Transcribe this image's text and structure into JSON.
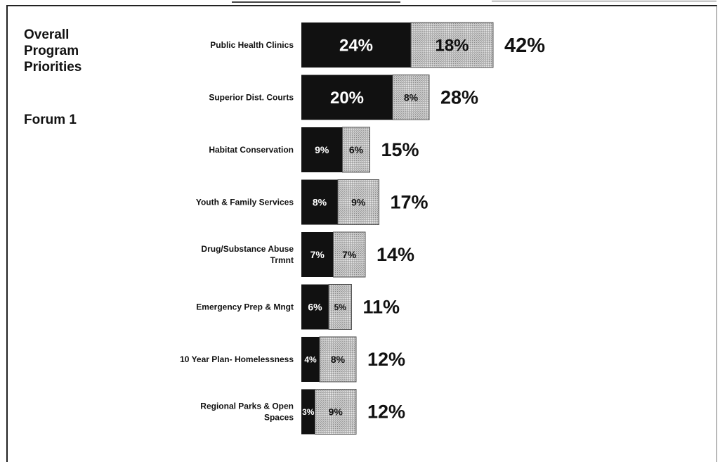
{
  "title_lines": [
    "Overall",
    "Program",
    "Priorities"
  ],
  "subtitle": "Forum 1",
  "chart_data": {
    "type": "bar",
    "orientation": "horizontal",
    "stacked": true,
    "title": "Overall Program Priorities",
    "subtitle": "Forum 1",
    "categories": [
      [
        "Public Health Clinics"
      ],
      [
        "Superior Dist. Courts"
      ],
      [
        "Habitat Conservation"
      ],
      [
        "Youth & Family Services"
      ],
      [
        "Drug/Substance Abuse",
        "Trmnt"
      ],
      [
        "Emergency Prep & Mngt"
      ],
      [
        "10 Year Plan- Homelessness"
      ],
      [
        "Regional Parks & Open",
        "Spaces"
      ]
    ],
    "series": [
      {
        "values": [
          24,
          20,
          9,
          8,
          7,
          6,
          4,
          3
        ],
        "labels": [
          "24%",
          "20%",
          "9%",
          "8%",
          "7%",
          "6%",
          "4%",
          "3%"
        ],
        "color": "#111111"
      },
      {
        "values": [
          18,
          8,
          6,
          9,
          7,
          5,
          8,
          9
        ],
        "labels": [
          "18%",
          "8%",
          "6%",
          "9%",
          "7%",
          "5%",
          "8%",
          "9%"
        ],
        "color": "#b9b9b9"
      }
    ],
    "totals": [
      "42%",
      "28%",
      "15%",
      "17%",
      "14%",
      "11%",
      "12%",
      "12%"
    ],
    "xlim": [
      0,
      45
    ],
    "grid": false,
    "legend": "none"
  }
}
